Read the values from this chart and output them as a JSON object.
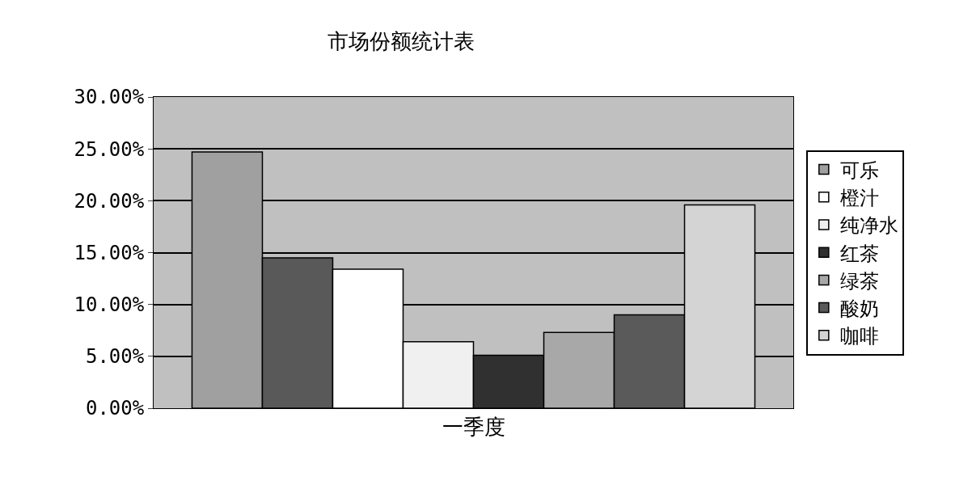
{
  "chart_data": {
    "type": "bar",
    "title": "市场份额统计表",
    "categories": [
      "一季度"
    ],
    "series": [
      {
        "name": "可乐",
        "color": "#a0a0a0",
        "values": [
          24.7
        ]
      },
      {
        "color": "#595959",
        "values": [
          14.5
        ]
      },
      {
        "name": "橙汁",
        "color": "#ffffff",
        "values": [
          13.4
        ]
      },
      {
        "name": "纯净水",
        "color": "#f0f0f0",
        "values": [
          6.4
        ]
      },
      {
        "name": "红茶",
        "color": "#303030",
        "values": [
          5.1
        ]
      },
      {
        "name": "绿茶",
        "color": "#a8a8a8",
        "values": [
          7.3
        ]
      },
      {
        "name": "酸奶",
        "color": "#5a5a5a",
        "values": [
          9.0
        ]
      },
      {
        "name": "咖啡",
        "color": "#d4d4d4",
        "values": [
          19.6
        ]
      }
    ],
    "ylim": [
      0,
      30
    ],
    "yticks": [
      {
        "value": 0,
        "label": "0.00%"
      },
      {
        "value": 5,
        "label": "5.00%"
      },
      {
        "value": 10,
        "label": "10.00%"
      },
      {
        "value": 15,
        "label": "15.00%"
      },
      {
        "value": 20,
        "label": "20.00%"
      },
      {
        "value": 25,
        "label": "25.00%"
      },
      {
        "value": 30,
        "label": "30.00%"
      }
    ],
    "grid": "y",
    "legend": "right"
  }
}
